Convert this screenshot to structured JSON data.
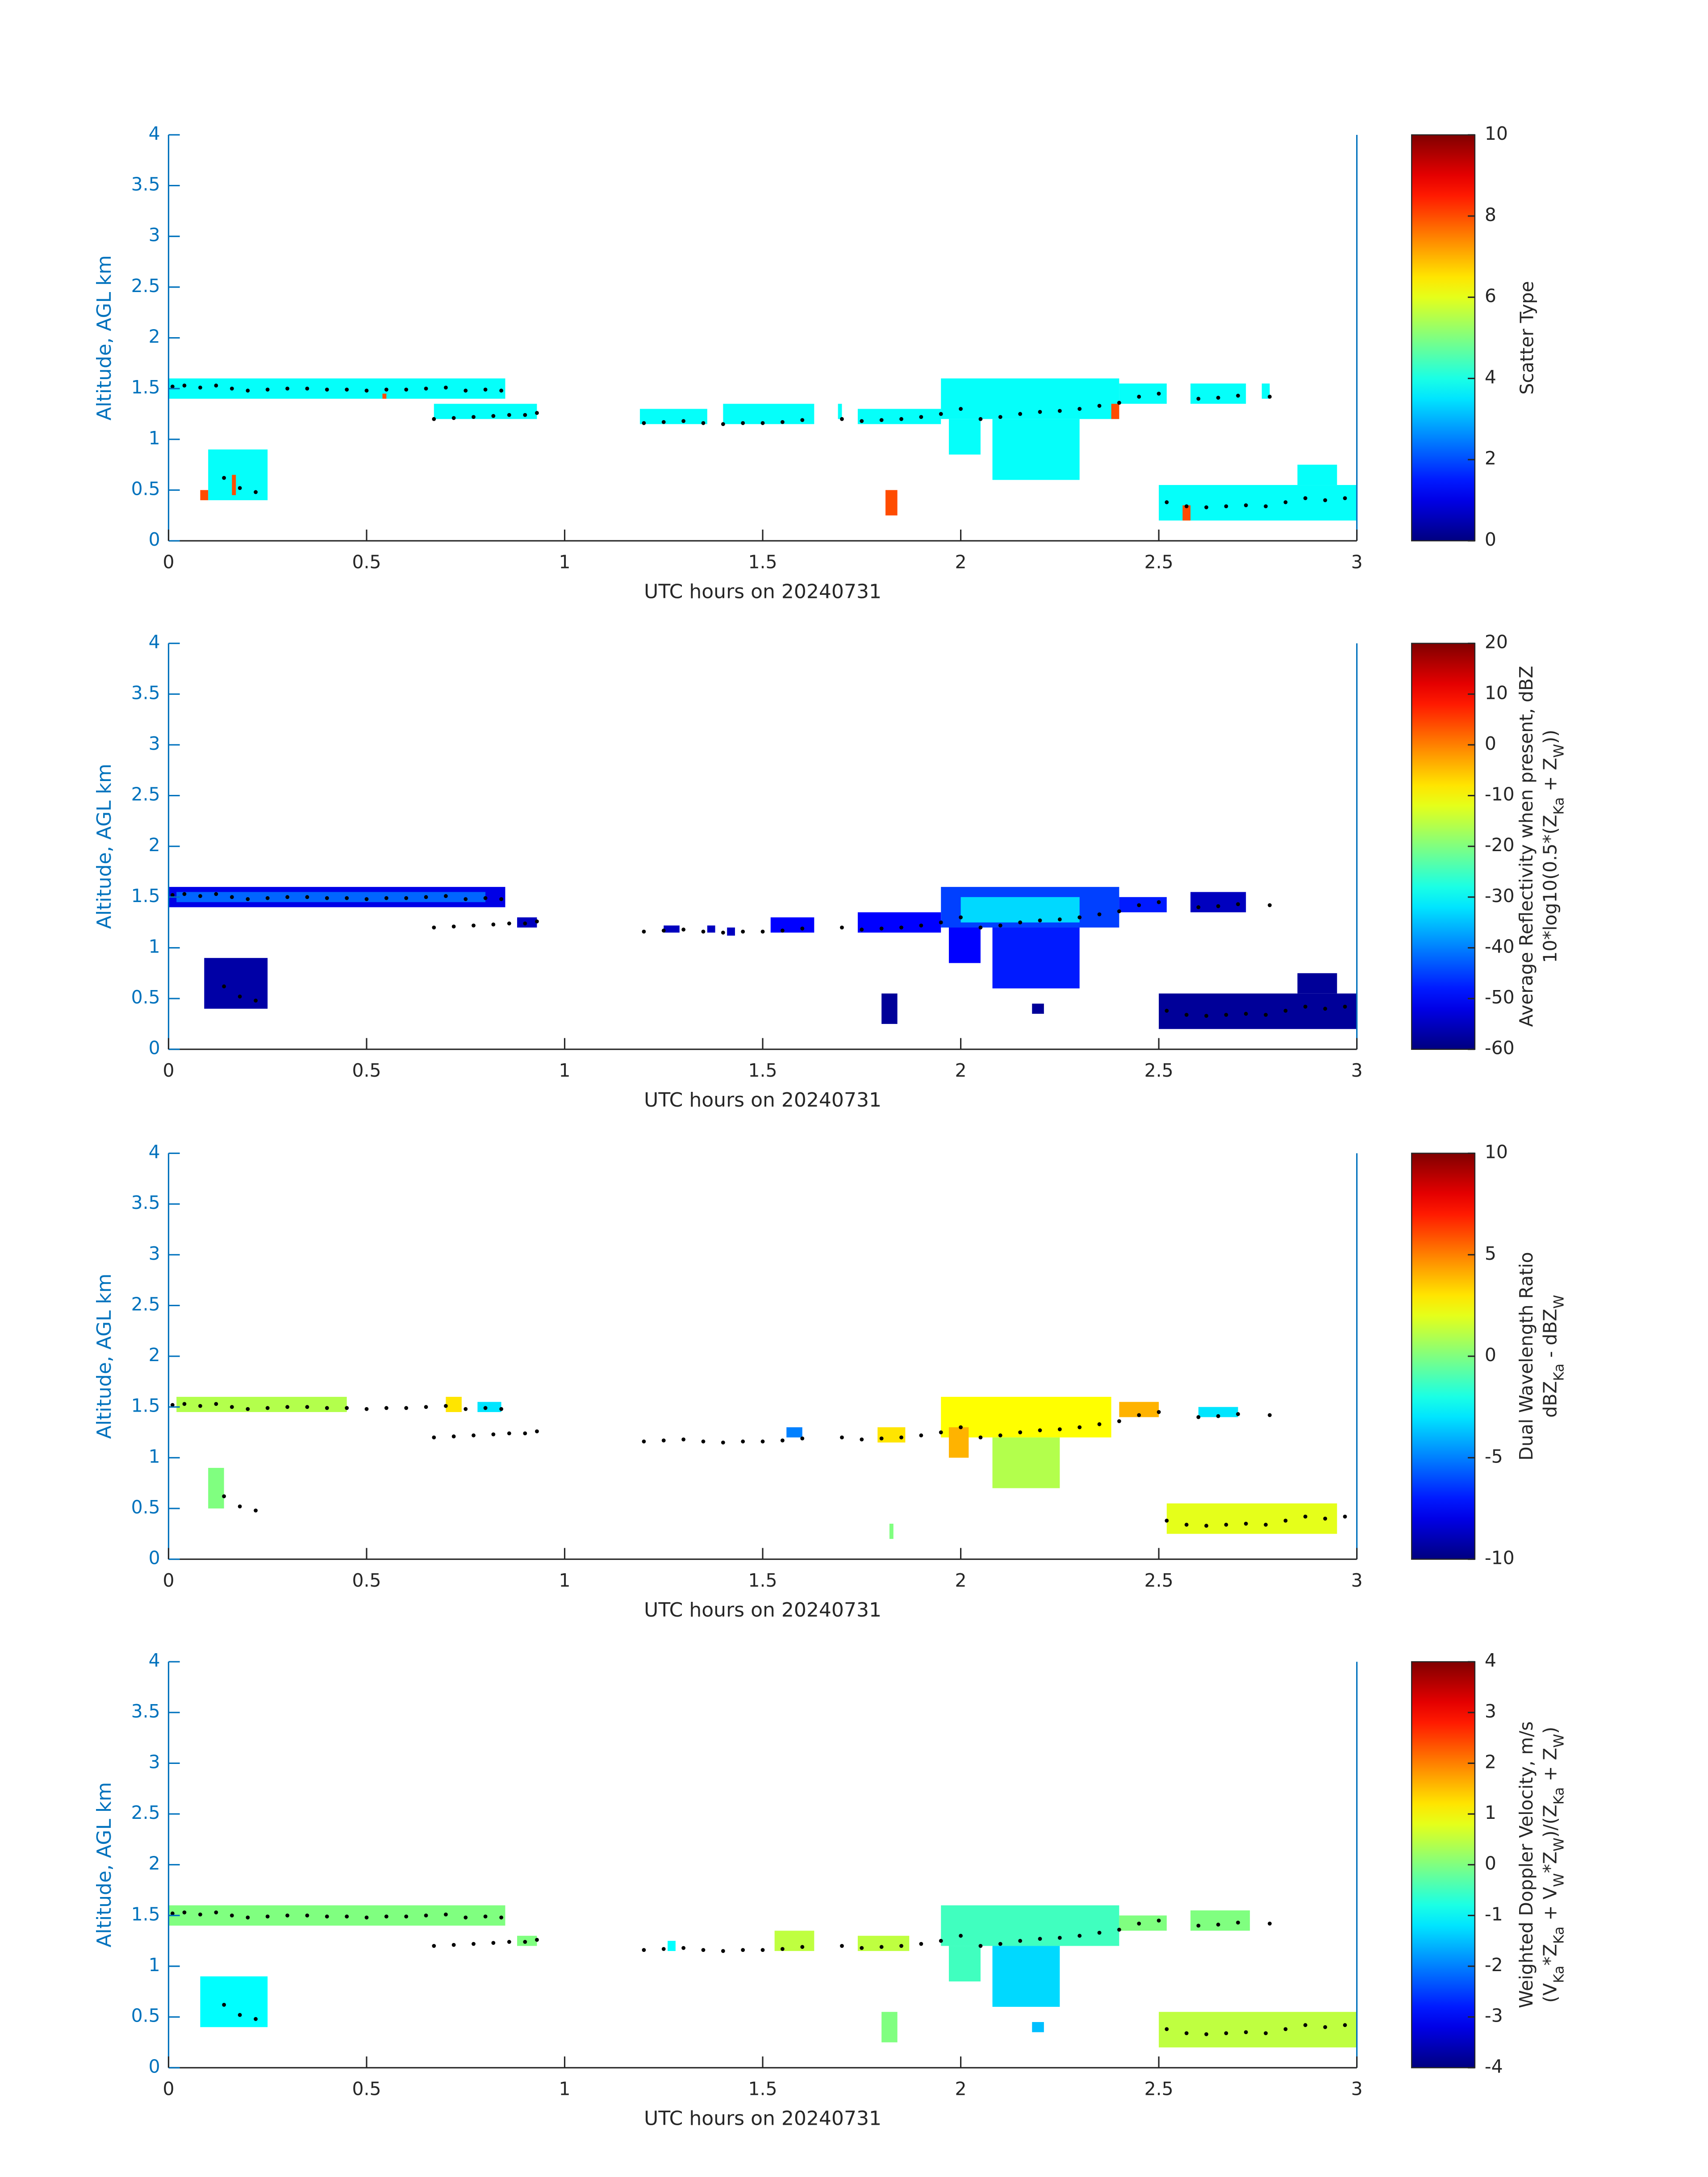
{
  "chart_data": [
    {
      "type": "heatmap",
      "colormap": "jet",
      "xlabel": "UTC hours on 20240731",
      "ylabel": "Altitude, AGL km",
      "xlim": [
        0,
        3
      ],
      "xticks": [
        0,
        0.5,
        1,
        1.5,
        2,
        2.5,
        3
      ],
      "ylim": [
        0,
        4
      ],
      "yticks": [
        0,
        0.5,
        1,
        1.5,
        2,
        2.5,
        3,
        3.5,
        4
      ],
      "colorbar": {
        "lim": [
          0,
          10
        ],
        "ticks": [
          0,
          2,
          4,
          6,
          8,
          10
        ],
        "label": [
          [
            {
              "text": "Scatter Type"
            }
          ]
        ]
      },
      "cells": [
        {
          "x": [
            0,
            0.85
          ],
          "y": [
            1.4,
            1.6
          ],
          "value": 3.8
        },
        {
          "x": [
            0.67,
            0.93
          ],
          "y": [
            1.2,
            1.35
          ],
          "value": 3.8
        },
        {
          "x": [
            0.1,
            0.25
          ],
          "y": [
            0.4,
            0.9
          ],
          "value": 3.8
        },
        {
          "x": [
            0.08,
            0.1
          ],
          "y": [
            0.4,
            0.5
          ],
          "value": 8
        },
        {
          "x": [
            0.16,
            0.17
          ],
          "y": [
            0.45,
            0.65
          ],
          "value": 8
        },
        {
          "x": [
            1.19,
            1.36
          ],
          "y": [
            1.15,
            1.3
          ],
          "value": 3.8
        },
        {
          "x": [
            1.4,
            1.63
          ],
          "y": [
            1.15,
            1.35
          ],
          "value": 3.8
        },
        {
          "x": [
            1.69,
            1.7
          ],
          "y": [
            1.2,
            1.35
          ],
          "value": 3.8
        },
        {
          "x": [
            1.74,
            1.95
          ],
          "y": [
            1.15,
            1.3
          ],
          "value": 3.8
        },
        {
          "x": [
            1.95,
            2.4
          ],
          "y": [
            1.2,
            1.6
          ],
          "value": 3.8
        },
        {
          "x": [
            2.08,
            2.3
          ],
          "y": [
            0.6,
            1.2
          ],
          "value": 3.8
        },
        {
          "x": [
            1.97,
            2.05
          ],
          "y": [
            0.85,
            1.2
          ],
          "value": 3.8
        },
        {
          "x": [
            2.4,
            2.52
          ],
          "y": [
            1.35,
            1.55
          ],
          "value": 3.8
        },
        {
          "x": [
            2.58,
            2.72
          ],
          "y": [
            1.35,
            1.55
          ],
          "value": 3.8
        },
        {
          "x": [
            2.76,
            2.78
          ],
          "y": [
            1.4,
            1.55
          ],
          "value": 3.8
        },
        {
          "x": [
            2.5,
            3
          ],
          "y": [
            0.2,
            0.55
          ],
          "value": 3.8
        },
        {
          "x": [
            2.85,
            2.95
          ],
          "y": [
            0.55,
            0.75
          ],
          "value": 3.8
        },
        {
          "x": [
            1.81,
            1.84
          ],
          "y": [
            0.25,
            0.5
          ],
          "value": 8
        },
        {
          "x": [
            2.56,
            2.58
          ],
          "y": [
            0.2,
            0.35
          ],
          "value": 8
        },
        {
          "x": [
            2.38,
            2.4
          ],
          "y": [
            1.2,
            1.35
          ],
          "value": 8
        },
        {
          "x": [
            0.54,
            0.55
          ],
          "y": [
            1.4,
            1.45
          ],
          "value": 8
        }
      ]
    },
    {
      "type": "heatmap",
      "colormap": "jet",
      "xlabel": "UTC hours on 20240731",
      "ylabel": "Altitude, AGL km",
      "xlim": [
        0,
        3
      ],
      "xticks": [
        0,
        0.5,
        1,
        1.5,
        2,
        2.5,
        3
      ],
      "ylim": [
        0,
        4
      ],
      "yticks": [
        0,
        0.5,
        1,
        1.5,
        2,
        2.5,
        3,
        3.5,
        4
      ],
      "colorbar": {
        "lim": [
          -60,
          20
        ],
        "ticks": [
          -60,
          -50,
          -40,
          -30,
          -20,
          -10,
          0,
          10,
          20
        ],
        "label": [
          [
            {
              "text": "Average Reflectivity when present, dBZ"
            }
          ],
          [
            {
              "text": "10*log10(0.5*(Z"
            },
            {
              "text": "Ka",
              "sub": true
            },
            {
              "text": " + Z"
            },
            {
              "text": "W",
              "sub": true
            },
            {
              "text": "))"
            }
          ]
        ]
      },
      "cells": [
        {
          "x": [
            0,
            0.85
          ],
          "y": [
            1.4,
            1.6
          ],
          "value": -52
        },
        {
          "x": [
            0.02,
            0.8
          ],
          "y": [
            1.45,
            1.55
          ],
          "value": -42
        },
        {
          "x": [
            0.88,
            0.93
          ],
          "y": [
            1.2,
            1.3
          ],
          "value": -55
        },
        {
          "x": [
            0.09,
            0.25
          ],
          "y": [
            0.4,
            0.9
          ],
          "value": -57
        },
        {
          "x": [
            1.25,
            1.29
          ],
          "y": [
            1.15,
            1.22
          ],
          "value": -55
        },
        {
          "x": [
            1.36,
            1.38
          ],
          "y": [
            1.15,
            1.22
          ],
          "value": -55
        },
        {
          "x": [
            1.41,
            1.43
          ],
          "y": [
            1.12,
            1.2
          ],
          "value": -55
        },
        {
          "x": [
            1.52,
            1.63
          ],
          "y": [
            1.15,
            1.3
          ],
          "value": -50
        },
        {
          "x": [
            1.74,
            1.95
          ],
          "y": [
            1.15,
            1.35
          ],
          "value": -50
        },
        {
          "x": [
            1.95,
            2.4
          ],
          "y": [
            1.2,
            1.6
          ],
          "value": -45
        },
        {
          "x": [
            2,
            2.3
          ],
          "y": [
            1.25,
            1.5
          ],
          "value": -33
        },
        {
          "x": [
            2.08,
            2.3
          ],
          "y": [
            0.6,
            1.2
          ],
          "value": -48
        },
        {
          "x": [
            1.97,
            2.05
          ],
          "y": [
            0.85,
            1.2
          ],
          "value": -50
        },
        {
          "x": [
            2.4,
            2.52
          ],
          "y": [
            1.35,
            1.5
          ],
          "value": -48
        },
        {
          "x": [
            2.58,
            2.72
          ],
          "y": [
            1.35,
            1.55
          ],
          "value": -55
        },
        {
          "x": [
            2.5,
            3
          ],
          "y": [
            0.2,
            0.55
          ],
          "value": -58
        },
        {
          "x": [
            2.85,
            2.95
          ],
          "y": [
            0.55,
            0.75
          ],
          "value": -58
        },
        {
          "x": [
            1.8,
            1.84
          ],
          "y": [
            0.25,
            0.55
          ],
          "value": -58
        },
        {
          "x": [
            2.18,
            2.21
          ],
          "y": [
            0.35,
            0.45
          ],
          "value": -58
        }
      ]
    },
    {
      "type": "heatmap",
      "colormap": "jet",
      "xlabel": "UTC hours on 20240731",
      "ylabel": "Altitude, AGL km",
      "xlim": [
        0,
        3
      ],
      "xticks": [
        0,
        0.5,
        1,
        1.5,
        2,
        2.5,
        3
      ],
      "ylim": [
        0,
        4
      ],
      "yticks": [
        0,
        0.5,
        1,
        1.5,
        2,
        2.5,
        3,
        3.5,
        4
      ],
      "colorbar": {
        "lim": [
          -10,
          10
        ],
        "ticks": [
          -10,
          -5,
          0,
          5,
          10
        ],
        "label": [
          [
            {
              "text": "Dual Wavelength Ratio"
            }
          ],
          [
            {
              "text": "dBZ"
            },
            {
              "text": "Ka",
              "sub": true
            },
            {
              "text": " - dBZ"
            },
            {
              "text": "W",
              "sub": true
            }
          ]
        ]
      },
      "cells": [
        {
          "x": [
            0.02,
            0.45
          ],
          "y": [
            1.45,
            1.6
          ],
          "value": 1
        },
        {
          "x": [
            0.7,
            0.74
          ],
          "y": [
            1.45,
            1.6
          ],
          "value": 3
        },
        {
          "x": [
            0.78,
            0.84
          ],
          "y": [
            1.45,
            1.55
          ],
          "value": -3
        },
        {
          "x": [
            0.1,
            0.14
          ],
          "y": [
            0.5,
            0.9
          ],
          "value": 0
        },
        {
          "x": [
            1.56,
            1.6
          ],
          "y": [
            1.2,
            1.3
          ],
          "value": -5
        },
        {
          "x": [
            1.79,
            1.86
          ],
          "y": [
            1.15,
            1.3
          ],
          "value": 3
        },
        {
          "x": [
            1.95,
            2.38
          ],
          "y": [
            1.2,
            1.6
          ],
          "value": 2.5
        },
        {
          "x": [
            2.08,
            2.25
          ],
          "y": [
            0.7,
            1.2
          ],
          "value": 1
        },
        {
          "x": [
            1.97,
            2.02
          ],
          "y": [
            1,
            1.3
          ],
          "value": 4
        },
        {
          "x": [
            2.4,
            2.5
          ],
          "y": [
            1.4,
            1.55
          ],
          "value": 4
        },
        {
          "x": [
            2.6,
            2.7
          ],
          "y": [
            1.4,
            1.5
          ],
          "value": -3
        },
        {
          "x": [
            2.52,
            2.95
          ],
          "y": [
            0.25,
            0.55
          ],
          "value": 2
        },
        {
          "x": [
            1.82,
            1.83
          ],
          "y": [
            0.2,
            0.35
          ],
          "value": 0
        }
      ]
    },
    {
      "type": "heatmap",
      "colormap": "jet",
      "xlabel": "UTC hours on 20240731",
      "ylabel": "Altitude, AGL km",
      "xlim": [
        0,
        3
      ],
      "xticks": [
        0,
        0.5,
        1,
        1.5,
        2,
        2.5,
        3
      ],
      "ylim": [
        0,
        4
      ],
      "yticks": [
        0,
        0.5,
        1,
        1.5,
        2,
        2.5,
        3,
        3.5,
        4
      ],
      "colorbar": {
        "lim": [
          -4,
          4
        ],
        "ticks": [
          -4,
          -3,
          -2,
          -1,
          0,
          1,
          2,
          3,
          4
        ],
        "label": [
          [
            {
              "text": "Weighted Doppler Velocity, m/s"
            }
          ],
          [
            {
              "text": "(V"
            },
            {
              "text": "Ka",
              "sub": true
            },
            {
              "text": "*Z"
            },
            {
              "text": "Ka",
              "sub": true
            },
            {
              "text": " + V"
            },
            {
              "text": "W",
              "sub": true
            },
            {
              "text": "*Z"
            },
            {
              "text": "W",
              "sub": true
            },
            {
              "text": ")/(Z"
            },
            {
              "text": "Ka",
              "sub": true
            },
            {
              "text": " + Z"
            },
            {
              "text": "W",
              "sub": true
            },
            {
              "text": ")"
            }
          ]
        ]
      },
      "cells": [
        {
          "x": [
            0,
            0.85
          ],
          "y": [
            1.4,
            1.6
          ],
          "value": 0
        },
        {
          "x": [
            0.88,
            0.93
          ],
          "y": [
            1.2,
            1.3
          ],
          "value": 0
        },
        {
          "x": [
            0.08,
            0.25
          ],
          "y": [
            0.4,
            0.9
          ],
          "value": -1
        },
        {
          "x": [
            1.26,
            1.28
          ],
          "y": [
            1.15,
            1.25
          ],
          "value": -1
        },
        {
          "x": [
            1.53,
            1.63
          ],
          "y": [
            1.15,
            1.35
          ],
          "value": 0.5
        },
        {
          "x": [
            1.74,
            1.87
          ],
          "y": [
            1.15,
            1.3
          ],
          "value": 0.5
        },
        {
          "x": [
            1.95,
            2.4
          ],
          "y": [
            1.2,
            1.6
          ],
          "value": -0.5
        },
        {
          "x": [
            2.08,
            2.25
          ],
          "y": [
            0.6,
            1.2
          ],
          "value": -1.3
        },
        {
          "x": [
            1.97,
            2.05
          ],
          "y": [
            0.85,
            1.2
          ],
          "value": -0.5
        },
        {
          "x": [
            2.4,
            2.52
          ],
          "y": [
            1.35,
            1.5
          ],
          "value": 0
        },
        {
          "x": [
            2.58,
            2.73
          ],
          "y": [
            1.35,
            1.55
          ],
          "value": 0
        },
        {
          "x": [
            2.5,
            3
          ],
          "y": [
            0.2,
            0.55
          ],
          "value": 0.5
        },
        {
          "x": [
            1.8,
            1.84
          ],
          "y": [
            0.25,
            0.55
          ],
          "value": 0
        },
        {
          "x": [
            2.18,
            2.21
          ],
          "y": [
            0.35,
            0.45
          ],
          "value": -1.5
        }
      ]
    }
  ],
  "cloud_base": {
    "color": "#000000",
    "x": [
      0.01,
      0.04,
      0.08,
      0.12,
      0.16,
      0.2,
      0.25,
      0.3,
      0.35,
      0.4,
      0.45,
      0.5,
      0.55,
      0.6,
      0.65,
      0.7,
      0.75,
      0.8,
      0.84,
      0.14,
      0.18,
      0.22,
      0.67,
      0.72,
      0.77,
      0.82,
      0.86,
      0.9,
      0.93,
      1.2,
      1.25,
      1.3,
      1.35,
      1.4,
      1.45,
      1.5,
      1.55,
      1.6,
      1.7,
      1.75,
      1.8,
      1.85,
      1.9,
      1.95,
      2,
      2.05,
      2.1,
      2.15,
      2.2,
      2.25,
      2.3,
      2.35,
      2.4,
      2.45,
      2.5,
      2.6,
      2.65,
      2.7,
      2.78,
      2.52,
      2.57,
      2.62,
      2.67,
      2.72,
      2.77,
      2.82,
      2.87,
      2.92,
      2.97
    ],
    "y": [
      1.52,
      1.53,
      1.51,
      1.53,
      1.5,
      1.48,
      1.49,
      1.5,
      1.5,
      1.49,
      1.49,
      1.48,
      1.49,
      1.49,
      1.5,
      1.51,
      1.48,
      1.49,
      1.48,
      0.62,
      0.52,
      0.48,
      1.2,
      1.21,
      1.22,
      1.23,
      1.24,
      1.24,
      1.26,
      1.16,
      1.17,
      1.18,
      1.16,
      1.15,
      1.16,
      1.16,
      1.17,
      1.19,
      1.2,
      1.18,
      1.19,
      1.2,
      1.22,
      1.25,
      1.3,
      1.2,
      1.22,
      1.25,
      1.27,
      1.28,
      1.3,
      1.33,
      1.36,
      1.42,
      1.45,
      1.4,
      1.41,
      1.43,
      1.42,
      0.38,
      0.34,
      0.33,
      0.34,
      0.35,
      0.34,
      0.38,
      0.42,
      0.4,
      0.42
    ]
  }
}
